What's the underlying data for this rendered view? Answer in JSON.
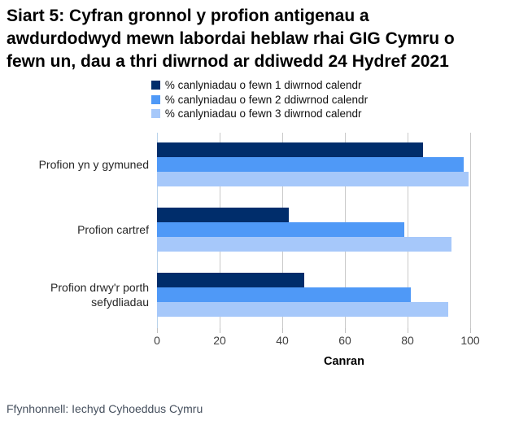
{
  "title": "Siart 5: Cyfran gronnol y profion antigenau a awdurdodwyd mewn labordai heblaw rhai GIG Cymru o fewn un, dau a thri diwrnod ar ddiwedd 24 Hydref 2021",
  "source": "Ffynhonnell: Iechyd Cyhoeddus Cymru",
  "colors": {
    "series_1": "#002d6b",
    "series_2": "#4f99f7",
    "series_3": "#a6c8fa",
    "gridline": "#c9c9c9",
    "zero_line": "#b9d3ea",
    "tick_text": "#404040",
    "category_text": "#262626",
    "source_text": "#46505e",
    "title_text": "#000000",
    "background": "#ffffff"
  },
  "chart_data": {
    "type": "bar",
    "orientation": "horizontal",
    "title": "Siart 5: Cyfran gronnol y profion antigenau a awdurdodwyd mewn labordai heblaw rhai GIG Cymru o fewn un, dau a thri diwrnod ar ddiwedd 24 Hydref 2021",
    "xlabel": "Canran",
    "xlim": [
      0,
      100
    ],
    "xticks": [
      0,
      20,
      40,
      60,
      80,
      100
    ],
    "grid": true,
    "legend_position": "top-center",
    "categories": [
      "Profion yn y gymuned",
      "Profion cartref",
      "Profion drwy'r porth sefydliadau"
    ],
    "series": [
      {
        "name": "% canlyniadau o fewn 1 diwrnod calendr",
        "color": "#002d6b",
        "values": [
          85,
          42,
          47
        ]
      },
      {
        "name": "% canlyniadau o fewn 2 ddiwrnod calendr",
        "color": "#4f99f7",
        "values": [
          98,
          79,
          81
        ]
      },
      {
        "name": "% canlyniadau o fewn 3 diwrnod calendr",
        "color": "#a6c8fa",
        "values": [
          99.5,
          94,
          93
        ]
      }
    ]
  }
}
